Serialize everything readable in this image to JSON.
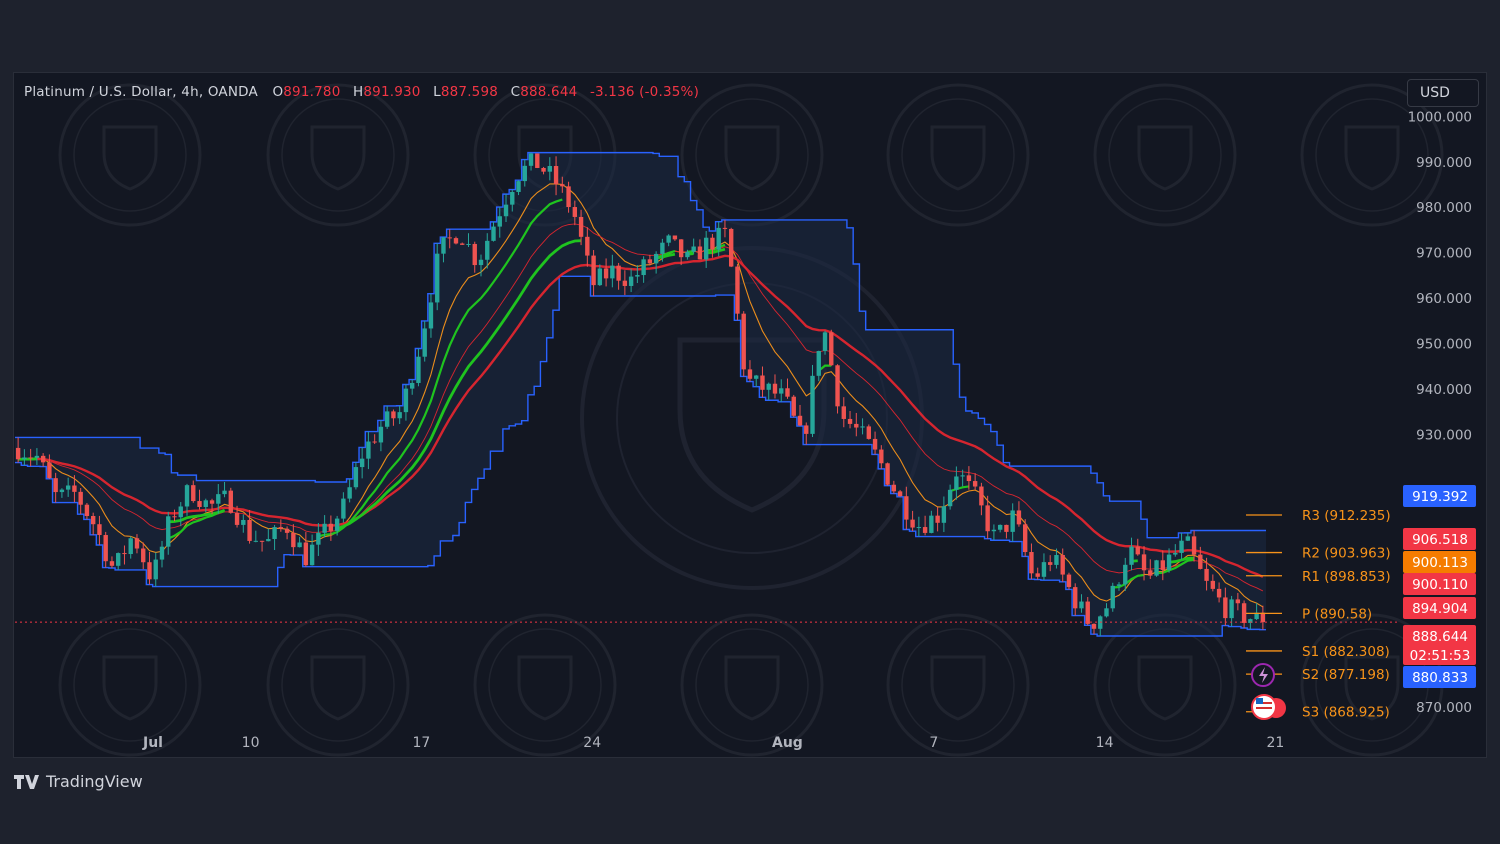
{
  "header": {
    "symbol": "Platinum / U.S. Dollar, 4h, OANDA",
    "open_label": "O",
    "open": "891.780",
    "high_label": "H",
    "high": "891.930",
    "low_label": "L",
    "low": "887.598",
    "close_label": "C",
    "close": "888.644",
    "change": "-3.136 (-0.35%)"
  },
  "currency_button": "USD",
  "brand": "TradingView",
  "colors": {
    "background": "#131722",
    "up": "#26a69a",
    "down": "#ef5350",
    "channel": "#2962ff",
    "ema_red": "#e0262f",
    "ema_orange": "#f7931a",
    "ema_green": "#1fc41f",
    "pivot": "#f7931a"
  },
  "chart_data": {
    "type": "candlestick",
    "ylim": [
      866,
      1008
    ],
    "y_ticks": [
      1000,
      990,
      980,
      970,
      960,
      950,
      940,
      930,
      870
    ],
    "y_tick_labels": [
      "1000.000",
      "990.000",
      "980.000",
      "970.000",
      "960.000",
      "950.000",
      "940.000",
      "930.000",
      "870.000"
    ],
    "x_labels": [
      {
        "day": 6,
        "label": "Jul"
      },
      {
        "day": 10,
        "label": "10"
      },
      {
        "day": 17,
        "label": "17"
      },
      {
        "day": 24,
        "label": "24"
      },
      {
        "day": 32,
        "label": "Aug"
      },
      {
        "day": 38,
        "label": "7"
      },
      {
        "day": 45,
        "label": "14"
      },
      {
        "day": 52,
        "label": "21"
      }
    ],
    "x_label_positions": [
      "Jul",
      "10",
      "17",
      "24",
      "Aug",
      "7",
      "14",
      "21"
    ],
    "days_start": 0,
    "days_end": 51,
    "price_path": [
      [
        0,
        927
      ],
      [
        1,
        925
      ],
      [
        2,
        916
      ],
      [
        3,
        917
      ],
      [
        4,
        910
      ],
      [
        5,
        900
      ],
      [
        6,
        908
      ],
      [
        7,
        898
      ],
      [
        8,
        912
      ],
      [
        9,
        918
      ],
      [
        10,
        914
      ],
      [
        11,
        916
      ],
      [
        12,
        908
      ],
      [
        13,
        906
      ],
      [
        14,
        910
      ],
      [
        15,
        903
      ],
      [
        16,
        908
      ],
      [
        17,
        914
      ],
      [
        18,
        926
      ],
      [
        19,
        932
      ],
      [
        20,
        935
      ],
      [
        21,
        950
      ],
      [
        22,
        970
      ],
      [
        23,
        975
      ],
      [
        24,
        968
      ],
      [
        25,
        978
      ],
      [
        26,
        987
      ],
      [
        27,
        990
      ],
      [
        28,
        986
      ],
      [
        29,
        979
      ],
      [
        30,
        963
      ],
      [
        31,
        966
      ],
      [
        32,
        964
      ],
      [
        33,
        968
      ],
      [
        34,
        972
      ],
      [
        35,
        968
      ],
      [
        36,
        972
      ],
      [
        37,
        974
      ],
      [
        38,
        942
      ],
      [
        39,
        940
      ],
      [
        40,
        938
      ],
      [
        41,
        928
      ],
      [
        42,
        955
      ],
      [
        43,
        934
      ],
      [
        44,
        930
      ],
      [
        45,
        924
      ],
      [
        46,
        916
      ],
      [
        47,
        910
      ],
      [
        48,
        912
      ],
      [
        49,
        922
      ],
      [
        50,
        916
      ],
      [
        51,
        907
      ],
      [
        52,
        912
      ],
      [
        53,
        898
      ],
      [
        54,
        903
      ],
      [
        55,
        895
      ],
      [
        56,
        888
      ],
      [
        57,
        893
      ],
      [
        58,
        905
      ],
      [
        59,
        898
      ],
      [
        60,
        902
      ],
      [
        61,
        906
      ],
      [
        62,
        897
      ],
      [
        63,
        892
      ],
      [
        64,
        890
      ],
      [
        65,
        889
      ]
    ],
    "last_price": 888.644,
    "countdown": "02:51:53",
    "price_badges": [
      {
        "value": "919.392",
        "color": "#2962ff"
      },
      {
        "value": "906.518",
        "color": "#f23645"
      },
      {
        "value": "900.113",
        "color": "#f57c00"
      },
      {
        "value": "900.110",
        "color": "#f23645"
      },
      {
        "value": "894.904",
        "color": "#f23645"
      },
      {
        "value": "888.644",
        "color": "#f23645"
      },
      {
        "value": "880.833",
        "color": "#2962ff"
      }
    ],
    "pivots": [
      {
        "name": "R3",
        "value": "912.235"
      },
      {
        "name": "R2",
        "value": "903.963"
      },
      {
        "name": "R1",
        "value": "898.853"
      },
      {
        "name": "P",
        "value": "890.58"
      },
      {
        "name": "S1",
        "value": "882.308"
      },
      {
        "name": "S2",
        "value": "877.198"
      },
      {
        "name": "S3",
        "value": "868.925"
      }
    ]
  }
}
